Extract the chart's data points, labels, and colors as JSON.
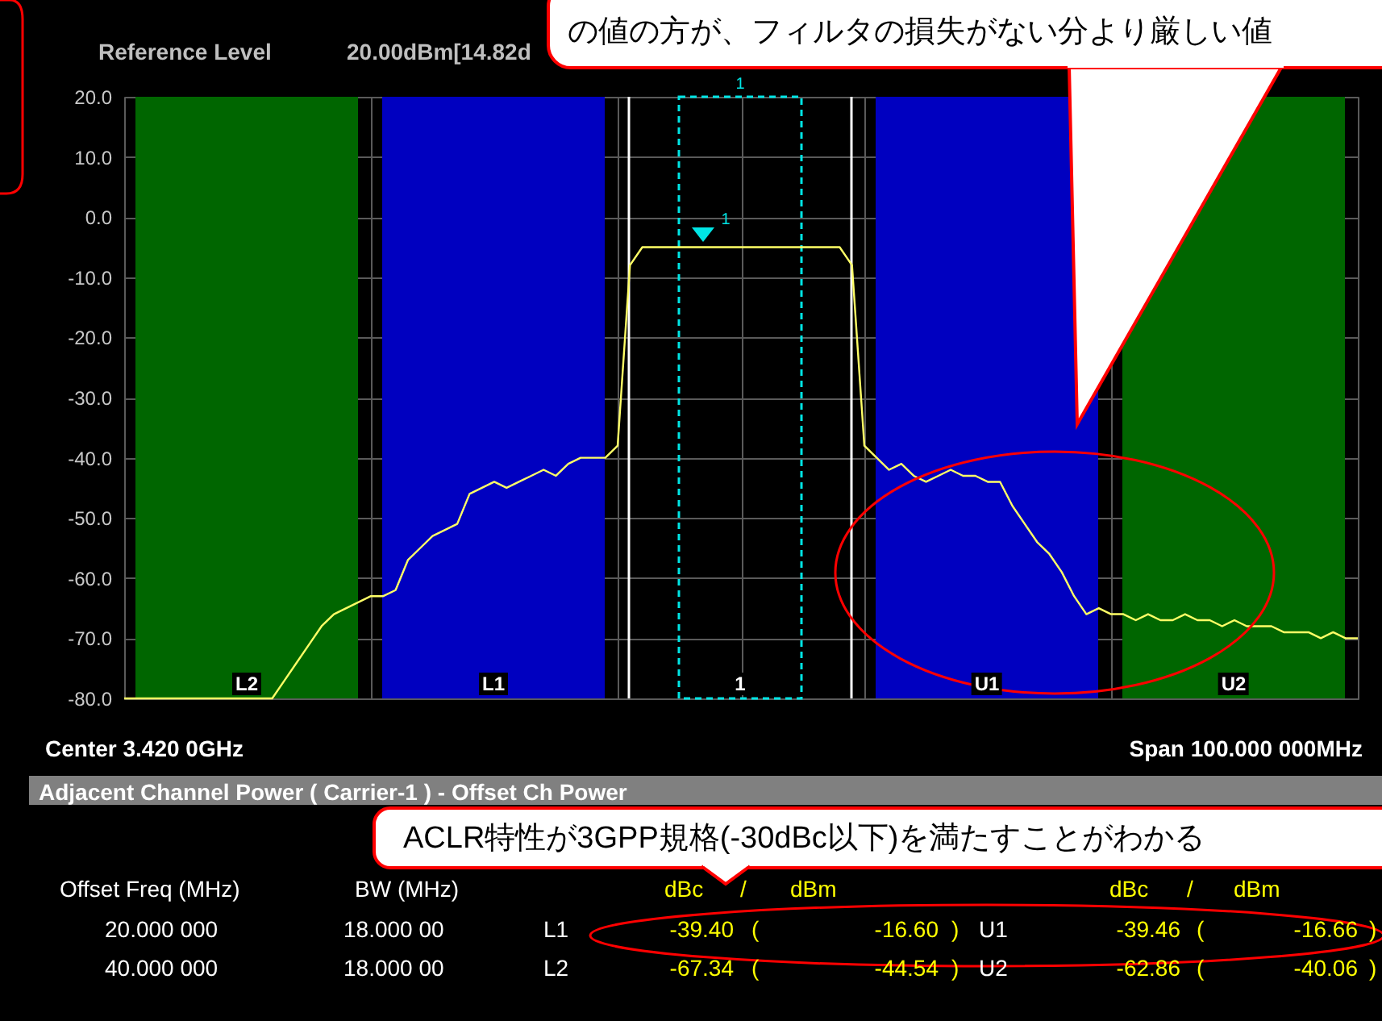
{
  "chart_data": {
    "type": "line",
    "ylim": [
      -80,
      20
    ],
    "yticks": [
      {
        "value": 20,
        "label": "20.0"
      },
      {
        "value": 10,
        "label": "10.0"
      },
      {
        "value": 0,
        "label": "0.0"
      },
      {
        "value": -10,
        "label": "-10.0"
      },
      {
        "value": -20,
        "label": "-20.0"
      },
      {
        "value": -30,
        "label": "-30.0"
      },
      {
        "value": -40,
        "label": "-40.0"
      },
      {
        "value": -50,
        "label": "-50.0"
      },
      {
        "value": -60,
        "label": "-60.0"
      },
      {
        "value": -70,
        "label": "-70.0"
      },
      {
        "value": -80,
        "label": "-80.0"
      }
    ],
    "categories": [
      null,
      null,
      null,
      null,
      null,
      null,
      null,
      null,
      null,
      null,
      null,
      null,
      null,
      null,
      null,
      null,
      null,
      null,
      null,
      null,
      null,
      null,
      null,
      null,
      null,
      null,
      null,
      null,
      null,
      null,
      null,
      null,
      null,
      null,
      null,
      null,
      null,
      null,
      null,
      null,
      null,
      null,
      null,
      null,
      null,
      null,
      null,
      null,
      null,
      null,
      null,
      null,
      null,
      null,
      null,
      null,
      null,
      null,
      null,
      null,
      null,
      null,
      null,
      null,
      null,
      null,
      null,
      null,
      null,
      null,
      null,
      null,
      null,
      null,
      null,
      null,
      null,
      null,
      null,
      null,
      null,
      null,
      null,
      null,
      null,
      null,
      null,
      null,
      null,
      null,
      null,
      null,
      null,
      null,
      null,
      null,
      null,
      null,
      null,
      null,
      null
    ],
    "tick_labels": "y",
    "grid": true,
    "series": [
      {
        "color": "#ffff66",
        "values": [
          -80,
          -80,
          -80,
          -80,
          -80,
          -80,
          -80,
          -80,
          -80,
          -80,
          -80,
          -80,
          -80,
          -77,
          -74,
          -71,
          -68,
          -66,
          -65,
          -64,
          -63,
          -63,
          -62,
          -57,
          -55,
          -53,
          -52,
          -51,
          -46,
          -45,
          -44,
          -45,
          -44,
          -43,
          -42,
          -43,
          -41,
          -40,
          -40,
          -40,
          -38,
          -8,
          -5,
          -5,
          -5,
          -5,
          -5,
          -5,
          -5,
          -5,
          -5,
          -5,
          -5,
          -5,
          -5,
          -5,
          -5,
          -5,
          -5,
          -8,
          -38,
          -40,
          -42,
          -41,
          -43,
          -44,
          -43,
          -42,
          -43,
          -43,
          -44,
          -44,
          -48,
          -51,
          -54,
          -56,
          -59,
          -63,
          -66,
          -65,
          -66,
          -66,
          -67,
          -66,
          -67,
          -67,
          -66,
          -67,
          -67,
          -68,
          -67,
          -68,
          -68,
          -68,
          -69,
          -69,
          -69,
          -70,
          -69,
          -70,
          -70
        ]
      }
    ],
    "annotations": [
      "Reference Level",
      "20.00dBm[14.82d",
      "Center 3.420 0GHz",
      "Span 100.000 000MHz",
      "Adjacent Channel Power ( Carrier-1 ) - Offset Ch Power",
      "Offset Freq (MHz)",
      "BW (MHz)",
      "dBc",
      "/",
      "dBm",
      "dBc",
      "/",
      "dBm",
      "20.000 000",
      "18.000 00",
      "L1",
      "-39.40",
      "(",
      "-16.60",
      ")",
      "U1",
      "-39.46",
      "(",
      "-16.66",
      ")",
      "40.000 000",
      "18.000 00",
      "L2",
      "-67.34",
      "(",
      "-44.54",
      ")",
      "U2",
      "-62.86",
      "(",
      "-40.06",
      ")",
      "の値の方が、フィルタの損失がない分より厳しい値",
      "ACLR特性が3GPP規格(-30dBc以下)を満たすことがわかる",
      "L2",
      "L1",
      "1",
      "U1",
      "U2",
      "1",
      "1"
    ]
  }
}
